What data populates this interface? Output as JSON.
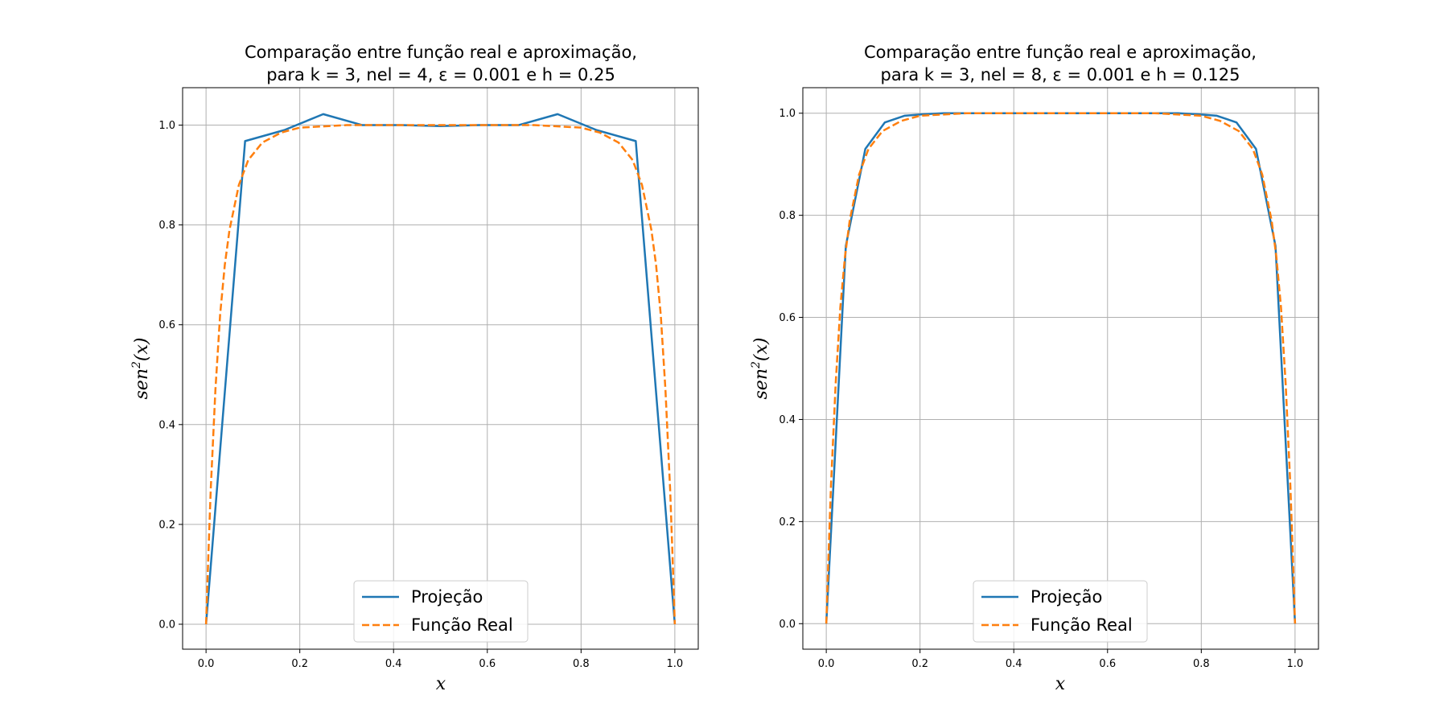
{
  "colors": {
    "projection": "#1f77b4",
    "real": "#ff7f0e",
    "grid": "#b0b0b0"
  },
  "chart_data": [
    {
      "type": "line",
      "title": [
        "Comparação entre função real e aproximação,",
        "para k = 3, nel = 4, ε = 0.001 e h = 0.25"
      ],
      "xlabel": "x",
      "ylabel_base": "sen",
      "ylabel_exp": "2",
      "ylabel_arg": "(x)",
      "xlim": [
        -0.05,
        1.05
      ],
      "ylim": [
        -0.05,
        1.075
      ],
      "xticks": [
        0.0,
        0.2,
        0.4,
        0.6,
        0.8,
        1.0
      ],
      "xtick_labels": [
        "0.0",
        "0.2",
        "0.4",
        "0.6",
        "0.8",
        "1.0"
      ],
      "yticks": [
        0.0,
        0.2,
        0.4,
        0.6,
        0.8,
        1.0
      ],
      "ytick_labels": [
        "0.0",
        "0.2",
        "0.4",
        "0.6",
        "0.8",
        "1.0"
      ],
      "grid": true,
      "legend_position": "lower center",
      "series": [
        {
          "name": "Projeção",
          "style": "solid",
          "x": [
            0.0,
            0.0833,
            0.1667,
            0.25,
            0.3333,
            0.4167,
            0.5,
            0.5833,
            0.6667,
            0.75,
            0.8333,
            0.9167,
            1.0
          ],
          "y": [
            0.0,
            0.968,
            0.99,
            1.022,
            1.0,
            1.0,
            0.998,
            1.0,
            1.0,
            1.022,
            0.99,
            0.968,
            0.0
          ]
        },
        {
          "name": "Função Real",
          "style": "dashed",
          "x": [
            0.0,
            0.005,
            0.01,
            0.02,
            0.03,
            0.04,
            0.05,
            0.07,
            0.09,
            0.12,
            0.16,
            0.2,
            0.3,
            0.5,
            0.7,
            0.8,
            0.84,
            0.88,
            0.91,
            0.93,
            0.95,
            0.96,
            0.97,
            0.98,
            0.99,
            0.995,
            1.0
          ],
          "y": [
            0.0,
            0.14,
            0.27,
            0.47,
            0.62,
            0.72,
            0.79,
            0.88,
            0.93,
            0.965,
            0.985,
            0.995,
            1.0,
            1.0,
            1.0,
            0.995,
            0.985,
            0.965,
            0.93,
            0.88,
            0.79,
            0.72,
            0.62,
            0.47,
            0.27,
            0.14,
            0.0
          ]
        }
      ]
    },
    {
      "type": "line",
      "title": [
        "Comparação entre função real e aproximação,",
        "para k = 3, nel = 8, ε = 0.001 e h = 0.125"
      ],
      "xlabel": "x",
      "ylabel_base": "sen",
      "ylabel_exp": "2",
      "ylabel_arg": "(x)",
      "xlim": [
        -0.05,
        1.05
      ],
      "ylim": [
        -0.05,
        1.05
      ],
      "xticks": [
        0.0,
        0.2,
        0.4,
        0.6,
        0.8,
        1.0
      ],
      "xtick_labels": [
        "0.0",
        "0.2",
        "0.4",
        "0.6",
        "0.8",
        "1.0"
      ],
      "yticks": [
        0.0,
        0.2,
        0.4,
        0.6,
        0.8,
        1.0
      ],
      "ytick_labels": [
        "0.0",
        "0.2",
        "0.4",
        "0.6",
        "0.8",
        "1.0"
      ],
      "grid": true,
      "legend_position": "lower center",
      "series": [
        {
          "name": "Projeção",
          "style": "solid",
          "x": [
            0.0,
            0.0417,
            0.0833,
            0.125,
            0.1667,
            0.2083,
            0.25,
            0.5,
            0.75,
            0.7917,
            0.8333,
            0.875,
            0.9167,
            0.9583,
            1.0
          ],
          "y": [
            0.0,
            0.74,
            0.93,
            0.982,
            0.995,
            0.998,
            1.0,
            1.0,
            1.0,
            0.998,
            0.995,
            0.982,
            0.93,
            0.74,
            0.0
          ]
        },
        {
          "name": "Função Real",
          "style": "dashed",
          "x": [
            0.0,
            0.005,
            0.01,
            0.02,
            0.03,
            0.04,
            0.05,
            0.07,
            0.09,
            0.12,
            0.16,
            0.2,
            0.3,
            0.5,
            0.7,
            0.8,
            0.84,
            0.88,
            0.91,
            0.93,
            0.95,
            0.96,
            0.97,
            0.98,
            0.99,
            0.995,
            1.0
          ],
          "y": [
            0.0,
            0.14,
            0.27,
            0.47,
            0.62,
            0.72,
            0.79,
            0.88,
            0.93,
            0.965,
            0.985,
            0.995,
            1.0,
            1.0,
            1.0,
            0.995,
            0.985,
            0.965,
            0.93,
            0.88,
            0.79,
            0.72,
            0.62,
            0.47,
            0.27,
            0.14,
            0.0
          ]
        }
      ]
    }
  ]
}
